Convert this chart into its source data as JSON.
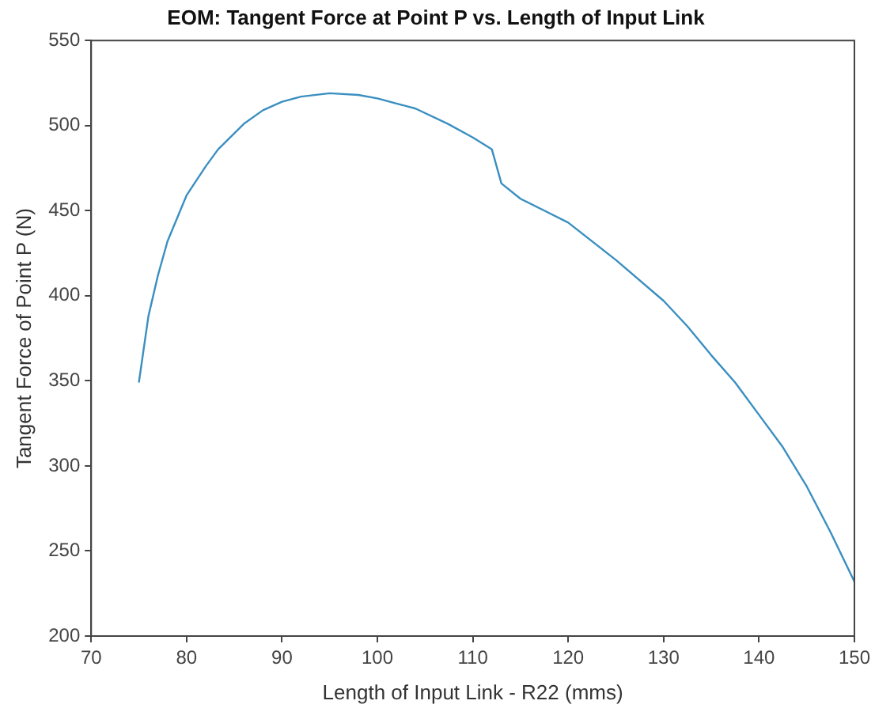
{
  "chart_data": {
    "type": "line",
    "title": "EOM: Tangent Force at Point P vs. Length of Input Link",
    "xlabel": "Length of Input Link - R22 (mms)",
    "ylabel": "Tangent Force of Point P (N)",
    "x": [
      75,
      76,
      77,
      78,
      80,
      82,
      83.3,
      86,
      88,
      90,
      92,
      95,
      98,
      100,
      104,
      107.4,
      110,
      112,
      113,
      115,
      117.5,
      120,
      125,
      130,
      132.5,
      135,
      137.5,
      140,
      142.5,
      145,
      147.5,
      150
    ],
    "series": [
      {
        "color": "#3a8fc0",
        "values": [
          349,
          388,
          412,
          432,
          459,
          476,
          486,
          501,
          509,
          514,
          517,
          519,
          518,
          516,
          510,
          501,
          493,
          486,
          466,
          457,
          450,
          443,
          421,
          397,
          382,
          365,
          349,
          330,
          311,
          288,
          261,
          232
        ]
      }
    ],
    "xlim": [
      70,
      150
    ],
    "xticks": [
      70,
      80,
      90,
      100,
      110,
      120,
      130,
      140,
      150
    ],
    "ylim": [
      200,
      550
    ],
    "yticks": [
      200,
      250,
      300,
      350,
      400,
      450,
      500,
      550
    ],
    "grid": false,
    "legend": false,
    "marker": "none"
  }
}
